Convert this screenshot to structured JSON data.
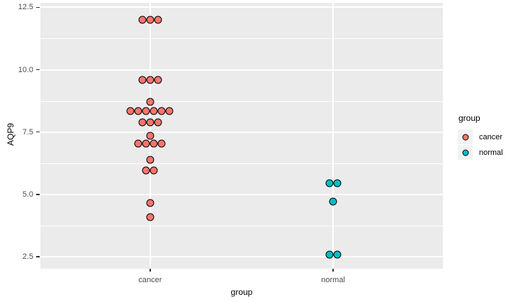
{
  "chart_data": {
    "type": "dotplot",
    "title": "",
    "xlabel": "group",
    "ylabel": "AQP9",
    "categories": [
      "cancer",
      "normal"
    ],
    "y_ticks": [
      2.5,
      5.0,
      7.5,
      10.0,
      12.5
    ],
    "y_tick_labels": [
      "2.5",
      "5.0",
      "7.5",
      "10.0",
      "12.5"
    ],
    "y_minor_gridlines": [
      3.75,
      6.25,
      8.75,
      11.25
    ],
    "ylim": [
      2.02,
      12.68
    ],
    "grid": true,
    "legend_position": "right",
    "panel_background": "#EBEBEB",
    "gridline_color": "#FFFFFF",
    "axis_text_color": "#4D4D4D",
    "axis_title_color": "#000000",
    "legend": {
      "title": "group",
      "key_background": "#F2F2F2",
      "entries": [
        "cancer",
        "normal"
      ]
    },
    "series": [
      {
        "name": "cancer",
        "color": "#F8766D",
        "outline": "#000000",
        "stacks": [
          {
            "y": 12.0,
            "count": 3
          },
          {
            "y": 9.6,
            "count": 3
          },
          {
            "y": 8.7,
            "count": 1
          },
          {
            "y": 8.35,
            "count": 6
          },
          {
            "y": 7.9,
            "count": 3
          },
          {
            "y": 7.35,
            "count": 1
          },
          {
            "y": 7.05,
            "count": 4
          },
          {
            "y": 6.4,
            "count": 1
          },
          {
            "y": 5.95,
            "count": 2
          },
          {
            "y": 4.65,
            "count": 1
          },
          {
            "y": 4.1,
            "count": 1
          }
        ]
      },
      {
        "name": "normal",
        "color": "#00BFC4",
        "outline": "#000000",
        "stacks": [
          {
            "y": 5.45,
            "count": 2
          },
          {
            "y": 4.7,
            "count": 1
          },
          {
            "y": 2.6,
            "count": 2
          }
        ]
      }
    ]
  }
}
